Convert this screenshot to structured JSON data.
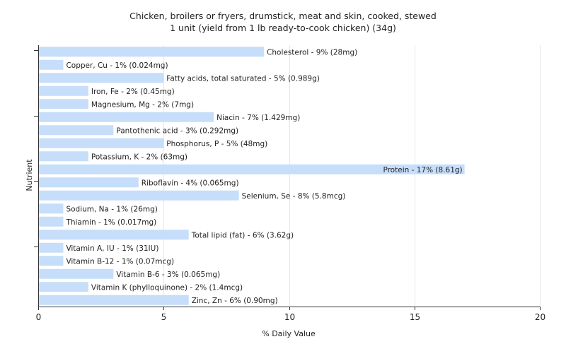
{
  "chart_data": {
    "type": "bar",
    "orientation": "horizontal",
    "title": "Chicken, broilers or fryers, drumstick, meat and skin, cooked, stewed",
    "subtitle": "1 unit (yield from 1 lb ready-to-cook chicken) (34g)",
    "xlabel": "% Daily Value",
    "ylabel": "Nutrient",
    "xlim": [
      0,
      20
    ],
    "xticks": [
      0,
      5,
      10,
      15,
      20
    ],
    "grid": true,
    "bar_color": "#c6defa",
    "grid_color": "#e6e6e6",
    "categories": [
      "Cholesterol",
      "Copper, Cu",
      "Fatty acids, total saturated",
      "Iron, Fe",
      "Magnesium, Mg",
      "Niacin",
      "Pantothenic acid",
      "Phosphorus, P",
      "Potassium, K",
      "Protein",
      "Riboflavin",
      "Selenium, Se",
      "Sodium, Na",
      "Thiamin",
      "Total lipid (fat)",
      "Vitamin A, IU",
      "Vitamin B-12",
      "Vitamin B-6",
      "Vitamin K (phylloquinone)",
      "Zinc, Zn"
    ],
    "values": [
      9,
      1,
      5,
      2,
      2,
      7,
      3,
      5,
      2,
      17,
      4,
      8,
      1,
      1,
      6,
      1,
      1,
      3,
      2,
      6
    ],
    "labels": [
      "Cholesterol - 9% (28mg)",
      "Copper, Cu - 1% (0.024mg)",
      "Fatty acids, total saturated - 5% (0.989g)",
      "Iron, Fe - 2% (0.45mg)",
      "Magnesium, Mg - 2% (7mg)",
      "Niacin - 7% (1.429mg)",
      "Pantothenic acid - 3% (0.292mg)",
      "Phosphorus, P - 5% (48mg)",
      "Potassium, K - 2% (63mg)",
      "Protein - 17% (8.61g)",
      "Riboflavin - 4% (0.065mg)",
      "Selenium, Se - 8% (5.8mcg)",
      "Sodium, Na - 1% (26mg)",
      "Thiamin - 1% (0.017mg)",
      "Total lipid (fat) - 6% (3.62g)",
      "Vitamin A, IU - 1% (31IU)",
      "Vitamin B-12 - 1% (0.07mcg)",
      "Vitamin B-6 - 3% (0.065mg)",
      "Vitamin K (phylloquinone) - 2% (1.4mcg)",
      "Zinc, Zn - 6% (0.90mg)"
    ],
    "inside_label_threshold": 15
  }
}
